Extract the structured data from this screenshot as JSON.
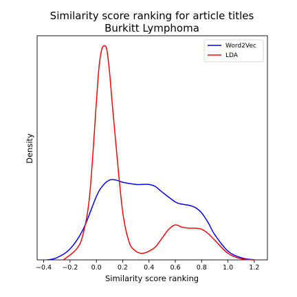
{
  "chart_data": {
    "type": "line",
    "title": "Similarity score ranking for article titles",
    "subtitle": "Burkitt Lymphoma",
    "xlabel": "Similarity score ranking",
    "ylabel": "Density",
    "xlim": [
      -0.45,
      1.3
    ],
    "ylim": [
      0,
      1
    ],
    "xticks": [
      -0.4,
      -0.2,
      0.0,
      0.2,
      0.4,
      0.6,
      0.8,
      1.0,
      1.2
    ],
    "xtick_labels": [
      "−0.4",
      "−0.2",
      "0.0",
      "0.2",
      "0.4",
      "0.6",
      "0.8",
      "1.0",
      "1.2"
    ],
    "y_ticks_shown": false,
    "grid": false,
    "legend": {
      "position": "top-right"
    },
    "series": [
      {
        "name": "Word2Vec",
        "color": "#0000ff",
        "x": [
          -0.37,
          -0.3,
          -0.2,
          -0.1,
          0.0,
          0.05,
          0.1,
          0.15,
          0.2,
          0.3,
          0.35,
          0.4,
          0.45,
          0.5,
          0.6,
          0.65,
          0.7,
          0.75,
          0.8,
          0.85,
          0.9,
          1.0,
          1.1,
          1.2
        ],
        "y": [
          0.0,
          0.01,
          0.05,
          0.14,
          0.29,
          0.34,
          0.365,
          0.365,
          0.355,
          0.345,
          0.345,
          0.345,
          0.335,
          0.31,
          0.265,
          0.255,
          0.25,
          0.24,
          0.215,
          0.17,
          0.115,
          0.04,
          0.01,
          0.0
        ]
      },
      {
        "name": "LDA",
        "color": "#ff0000",
        "x": [
          -0.25,
          -0.15,
          -0.1,
          -0.05,
          0.0,
          0.02,
          0.04,
          0.06,
          0.08,
          0.1,
          0.12,
          0.15,
          0.2,
          0.25,
          0.3,
          0.35,
          0.4,
          0.45,
          0.5,
          0.55,
          0.6,
          0.65,
          0.7,
          0.75,
          0.8,
          0.85,
          0.9,
          1.0,
          1.1,
          1.2
        ],
        "y": [
          0.0,
          0.05,
          0.12,
          0.3,
          0.72,
          0.88,
          0.96,
          0.98,
          0.96,
          0.86,
          0.72,
          0.52,
          0.22,
          0.08,
          0.04,
          0.03,
          0.04,
          0.06,
          0.1,
          0.14,
          0.16,
          0.15,
          0.145,
          0.145,
          0.14,
          0.12,
          0.09,
          0.03,
          0.005,
          0.0
        ]
      }
    ]
  }
}
